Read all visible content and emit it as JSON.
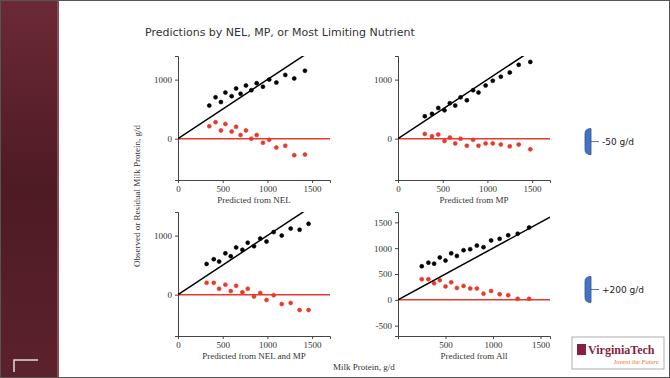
{
  "title": "Predictions by NEL, MP, or Most Limiting Nutrient",
  "y_label": "Observed or Residual Milk Protein, g/d",
  "x_label": "Milk Protein, g/d",
  "logo": {
    "text": "VirginiaTech",
    "tagline": "Invent the Future"
  },
  "chart_data": [
    {
      "type": "scatter",
      "x_label": "Predicted from NEL",
      "xlim": [
        0,
        1700
      ],
      "ylim": [
        -700,
        1400
      ],
      "xticks": [
        0,
        500,
        1000,
        1500
      ],
      "yticks": [
        0,
        1000
      ],
      "hline": {
        "value": 0,
        "color": "#e8392a"
      },
      "identity_line": {
        "from": 0,
        "to": 1700,
        "color": "#000000"
      },
      "series": [
        {
          "color": "#000000",
          "marker": "circle",
          "x": [
            350,
            420,
            480,
            530,
            600,
            650,
            700,
            760,
            820,
            880,
            950,
            1020,
            1100,
            1200,
            1300,
            1420
          ],
          "values": [
            560,
            700,
            620,
            780,
            720,
            850,
            760,
            900,
            820,
            940,
            880,
            1000,
            950,
            1080,
            1020,
            1150
          ]
        },
        {
          "color": "#e8392a",
          "marker": "circle",
          "x": [
            350,
            420,
            480,
            530,
            600,
            650,
            700,
            760,
            820,
            880,
            950,
            1020,
            1100,
            1200,
            1300,
            1420
          ],
          "values": [
            210,
            280,
            140,
            250,
            120,
            200,
            60,
            140,
            0,
            60,
            -70,
            -20,
            -150,
            -120,
            -280,
            -270
          ]
        }
      ]
    },
    {
      "type": "scatter",
      "x_label": "Predicted from MP",
      "xlim": [
        0,
        1700
      ],
      "ylim": [
        -700,
        1400
      ],
      "xticks": [
        0,
        500,
        1000,
        1500
      ],
      "yticks": [
        0,
        1000
      ],
      "hline": {
        "value": 0,
        "color": "#e8392a"
      },
      "identity_line": {
        "from": 0,
        "to": 1700,
        "color": "#000000"
      },
      "annotation": {
        "text": "-50 g/d",
        "y": -50,
        "color": "#4472c4"
      },
      "series": [
        {
          "color": "#000000",
          "marker": "circle",
          "x": [
            300,
            380,
            450,
            520,
            580,
            640,
            700,
            770,
            840,
            900,
            980,
            1060,
            1150,
            1250,
            1350,
            1480
          ],
          "values": [
            380,
            420,
            520,
            480,
            600,
            560,
            700,
            650,
            820,
            780,
            900,
            980,
            1050,
            1120,
            1250,
            1300
          ]
        },
        {
          "color": "#e8392a",
          "marker": "circle",
          "x": [
            300,
            380,
            450,
            520,
            580,
            640,
            700,
            770,
            840,
            900,
            980,
            1060,
            1150,
            1250,
            1350,
            1480
          ],
          "values": [
            80,
            40,
            70,
            -40,
            20,
            -80,
            0,
            -120,
            -20,
            -120,
            -80,
            -80,
            -100,
            -130,
            -100,
            -180
          ]
        }
      ]
    },
    {
      "type": "scatter",
      "x_label": "Predicted from NEL and MP",
      "xlim": [
        0,
        1700
      ],
      "ylim": [
        -700,
        1400
      ],
      "xticks": [
        0,
        500,
        1000,
        1500
      ],
      "yticks": [
        0,
        1000
      ],
      "hline": {
        "value": 0,
        "color": "#e8392a"
      },
      "identity_line": {
        "from": 0,
        "to": 1700,
        "color": "#000000"
      },
      "series": [
        {
          "color": "#000000",
          "marker": "circle",
          "x": [
            320,
            400,
            460,
            530,
            590,
            650,
            720,
            780,
            850,
            920,
            990,
            1070,
            1160,
            1260,
            1360,
            1460
          ],
          "values": [
            520,
            600,
            560,
            700,
            650,
            800,
            760,
            880,
            820,
            950,
            900,
            1060,
            1000,
            1120,
            1100,
            1200
          ]
        },
        {
          "color": "#e8392a",
          "marker": "circle",
          "x": [
            320,
            400,
            460,
            530,
            590,
            650,
            720,
            780,
            850,
            920,
            990,
            1070,
            1160,
            1260,
            1360,
            1460
          ],
          "values": [
            200,
            200,
            100,
            170,
            60,
            150,
            40,
            100,
            -30,
            30,
            -90,
            -10,
            -160,
            -140,
            -260,
            -260
          ]
        }
      ]
    },
    {
      "type": "scatter",
      "x_label": "Predicted from All",
      "xlim": [
        0,
        1600
      ],
      "ylim": [
        -700,
        1700
      ],
      "xticks": [
        500,
        1000,
        1500
      ],
      "yticks": [
        -500,
        0,
        500,
        1000,
        1500
      ],
      "hline": {
        "value": 0,
        "color": "#e8392a"
      },
      "identity_line": {
        "from": 0,
        "to": 1600,
        "color": "#000000"
      },
      "annotation": {
        "text": "+200 g/d",
        "y": 200,
        "color": "#4472c4"
      },
      "series": [
        {
          "color": "#000000",
          "marker": "circle",
          "x": [
            250,
            320,
            380,
            440,
            500,
            560,
            620,
            690,
            760,
            830,
            900,
            980,
            1070,
            1160,
            1260,
            1380
          ],
          "values": [
            650,
            720,
            700,
            820,
            760,
            900,
            850,
            960,
            980,
            1050,
            1020,
            1150,
            1180,
            1250,
            1280,
            1400
          ]
        },
        {
          "color": "#e8392a",
          "marker": "circle",
          "x": [
            250,
            320,
            380,
            440,
            500,
            560,
            620,
            690,
            760,
            830,
            900,
            980,
            1070,
            1160,
            1260,
            1380
          ],
          "values": [
            400,
            400,
            320,
            380,
            260,
            340,
            230,
            270,
            220,
            220,
            120,
            170,
            110,
            90,
            20,
            20
          ]
        }
      ]
    }
  ]
}
